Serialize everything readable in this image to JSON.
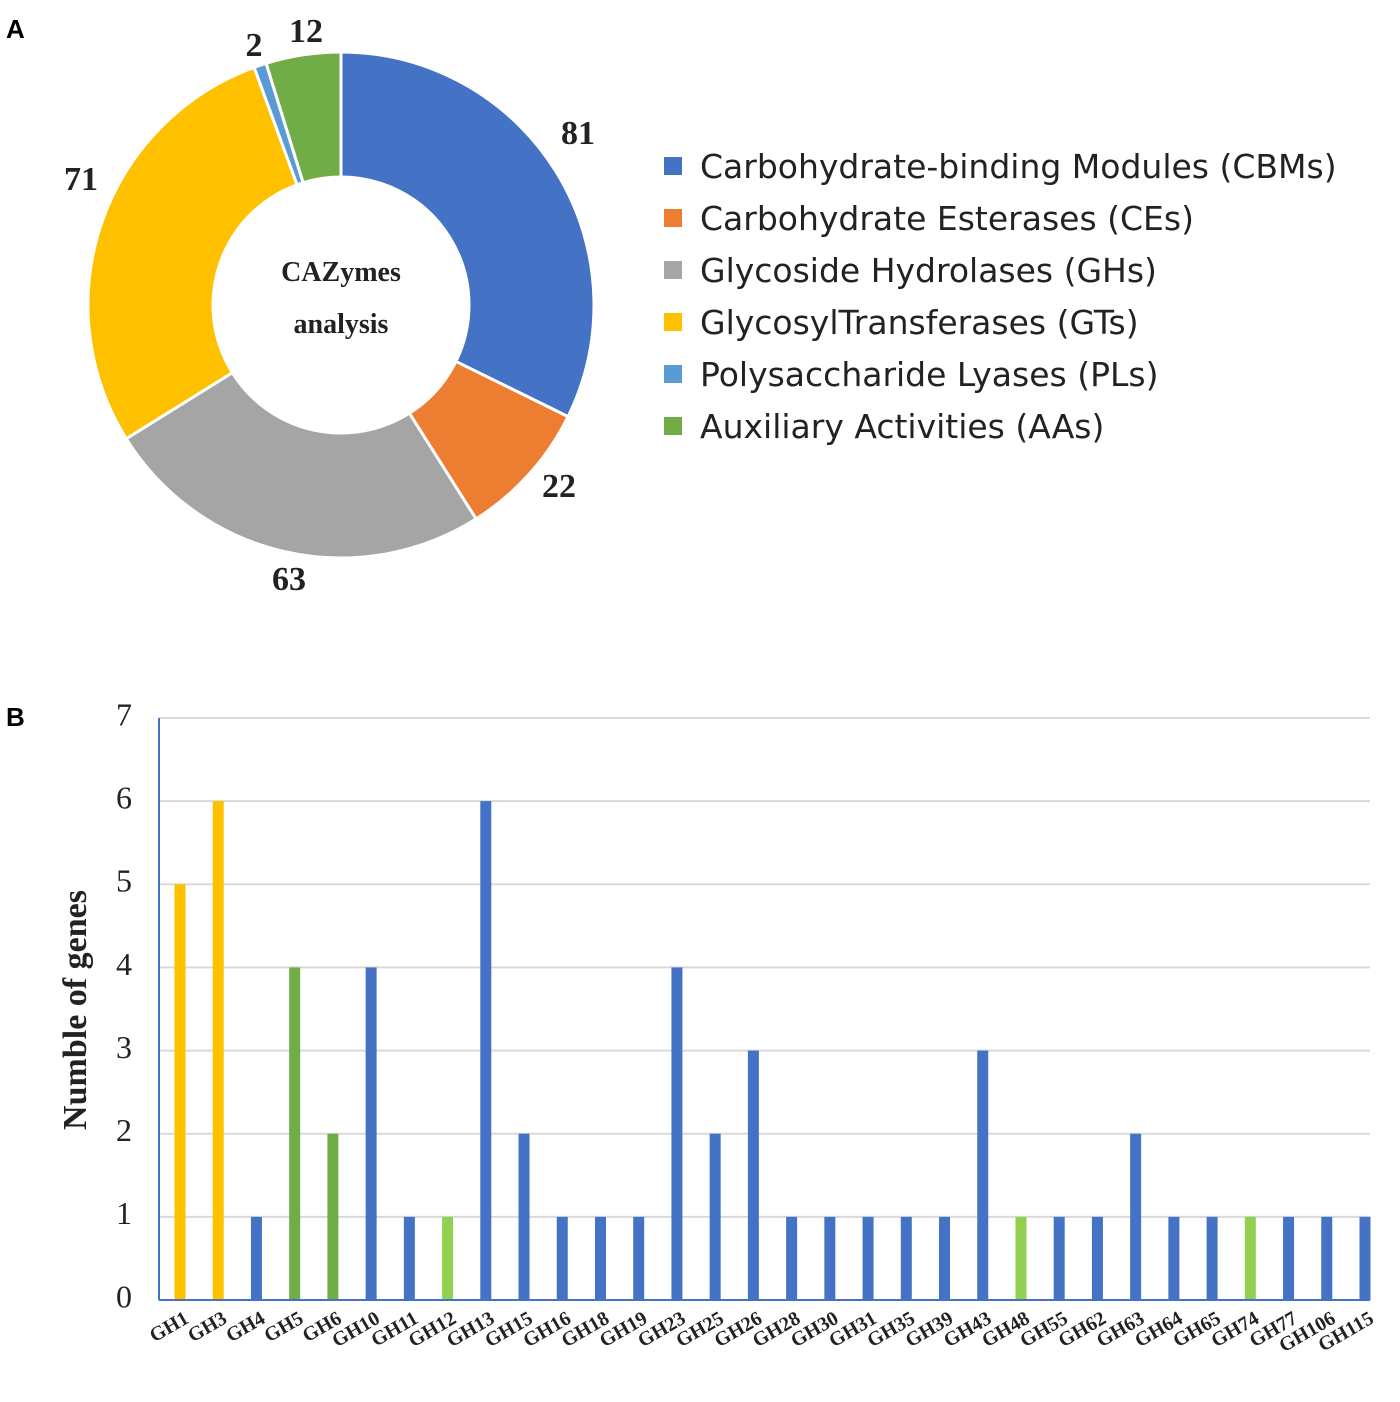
{
  "panel_labels": {
    "a": "A",
    "b": "B"
  },
  "chart_data": [
    {
      "type": "pie",
      "variant": "donut",
      "center_label": [
        "CAZymes",
        "analysis"
      ],
      "slices": [
        {
          "name": "Carbohydrate-binding Modules (CBMs)",
          "value": 81,
          "label": "81",
          "color": "#4472C4"
        },
        {
          "name": "Carbohydrate Esterases (CEs)",
          "value": 22,
          "label": "22",
          "color": "#ED7D31"
        },
        {
          "name": "Glycoside Hydrolases (GHs)",
          "value": 63,
          "label": "63",
          "color": "#A5A5A5"
        },
        {
          "name": "GlycosylTransferases (GTs)",
          "value": 71,
          "label": "71",
          "color": "#FFC000"
        },
        {
          "name": "Polysaccharide Lyases (PLs)",
          "value": 2,
          "label": "2",
          "color": "#5B9BD5"
        },
        {
          "name": "Auxiliary Activities (AAs)",
          "value": 12,
          "label": "12",
          "color": "#70AD47"
        }
      ],
      "legend_position": "right"
    },
    {
      "type": "bar",
      "title": "",
      "xlabel": "",
      "ylabel": "Numble of genes",
      "ylim": [
        0,
        7
      ],
      "yticks": [
        0,
        1,
        2,
        3,
        4,
        5,
        6,
        7
      ],
      "grid": true,
      "categories": [
        "GH1",
        "GH3",
        "GH4",
        "GH5",
        "GH6",
        "GH10",
        "GH11",
        "GH12",
        "GH13",
        "GH15",
        "GH16",
        "GH18",
        "GH19",
        "GH23",
        "GH25",
        "GH26",
        "GH28",
        "GH30",
        "GH31",
        "GH35",
        "GH39",
        "GH43",
        "GH48",
        "GH55",
        "GH62",
        "GH63",
        "GH64",
        "GH65",
        "GH74",
        "GH77",
        "GH106",
        "GH115"
      ],
      "values": [
        5,
        6,
        1,
        4,
        2,
        4,
        1,
        1,
        6,
        2,
        1,
        1,
        1,
        4,
        2,
        3,
        1,
        1,
        1,
        1,
        1,
        3,
        1,
        1,
        1,
        2,
        1,
        1,
        1,
        1,
        1,
        1
      ],
      "bar_colors": [
        "#FFC000",
        "#FFC000",
        "#4472C4",
        "#70AD47",
        "#70AD47",
        "#4472C4",
        "#4472C4",
        "#92D050",
        "#4472C4",
        "#4472C4",
        "#4472C4",
        "#4472C4",
        "#4472C4",
        "#4472C4",
        "#4472C4",
        "#4472C4",
        "#4472C4",
        "#4472C4",
        "#4472C4",
        "#4472C4",
        "#4472C4",
        "#4472C4",
        "#92D050",
        "#4472C4",
        "#4472C4",
        "#4472C4",
        "#4472C4",
        "#4472C4",
        "#92D050",
        "#4472C4",
        "#4472C4",
        "#4472C4"
      ]
    }
  ]
}
